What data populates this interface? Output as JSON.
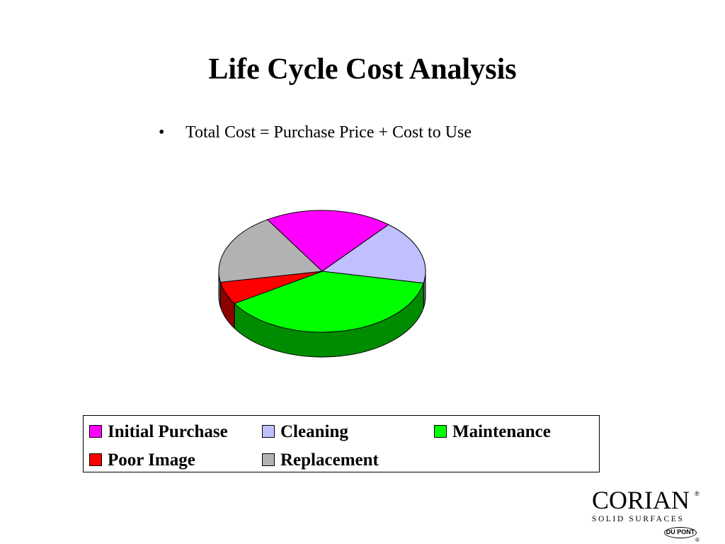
{
  "slide": {
    "title": "Life Cycle Cost Analysis",
    "bullet_mark": "•",
    "bullet_text": "Total Cost = Purchase Price + Cost to Use"
  },
  "chart_data": {
    "type": "pie",
    "style": "3d",
    "legend_position": "bottom",
    "slices": [
      {
        "label": "Initial Purchase",
        "value": 20,
        "color": "#FF00FF"
      },
      {
        "label": "Cleaning",
        "value": 17,
        "color": "#C0C0FF"
      },
      {
        "label": "Maintenance",
        "value": 38,
        "color": "#00FF00"
      },
      {
        "label": "Poor Image",
        "value": 6,
        "color": "#FF0000"
      },
      {
        "label": "Replacement",
        "value": 19,
        "color": "#B2B2B2"
      }
    ]
  },
  "legend": {
    "items": [
      "Initial Purchase",
      "Cleaning",
      "Maintenance",
      "Poor Image",
      "Replacement"
    ]
  },
  "logo": {
    "brand": "CORIAN",
    "registered": "®",
    "tagline": "SOLID SURFACES",
    "maker": "DU PONT",
    "maker_registered": "®"
  }
}
